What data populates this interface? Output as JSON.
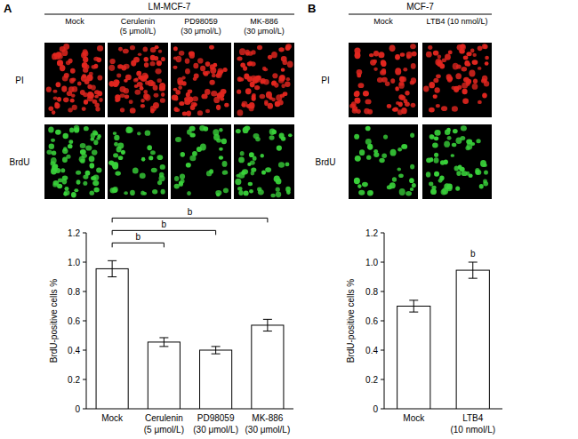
{
  "figure": {
    "panels": [
      {
        "letter": "A",
        "title": "LM-MCF-7",
        "rows": [
          "PI",
          "BrdU"
        ],
        "columns": [
          "Mock",
          "Cerulenin\n(5 μmol/L)",
          "PD98059\n(30 μmol/L)",
          "MK-886\n(30 μmol/L)"
        ]
      },
      {
        "letter": "B",
        "title": "MCF-7",
        "rows": [
          "PI",
          "BrdU"
        ],
        "columns": [
          "Mock",
          "LTB4 (10 nmol/L)"
        ]
      }
    ]
  },
  "chart_data": [
    {
      "type": "bar",
      "y_label": "BrdU-positive cells %",
      "categories": [
        "Mock",
        "Cerulenin\n(5 μmol/L)",
        "PD98059\n(30 μmol/L)",
        "MK-886\n(30 μmol/L)"
      ],
      "values": [
        0.955,
        0.455,
        0.4,
        0.57
      ],
      "errors": [
        0.055,
        0.03,
        0.025,
        0.04
      ],
      "color": "#ffffff",
      "ylim": [
        0,
        1.2
      ],
      "yticks": [
        0,
        0.2,
        0.4,
        0.6,
        0.8,
        {
          "value": 1,
          "label": "1.0"
        },
        1.2
      ],
      "annotations": [
        {
          "from": 0,
          "to": 1,
          "label": "b"
        },
        {
          "from": 0,
          "to": 2,
          "label": "b"
        },
        {
          "from": 0,
          "to": 3,
          "label": "b"
        }
      ]
    },
    {
      "type": "bar",
      "y_label": "BrdU-positive cells %",
      "categories": [
        "Mock",
        "LTB4\n(10 nmol/L)"
      ],
      "values": [
        0.7,
        0.945
      ],
      "errors": [
        0.04,
        0.055
      ],
      "color": "#ffffff",
      "ylim": [
        0,
        1.2
      ],
      "yticks": [
        0,
        0.2,
        0.4,
        0.6,
        0.8,
        {
          "value": 1,
          "label": "1.0"
        },
        1.2
      ],
      "annotations": [
        {
          "at": 1,
          "label": "b"
        }
      ]
    }
  ]
}
